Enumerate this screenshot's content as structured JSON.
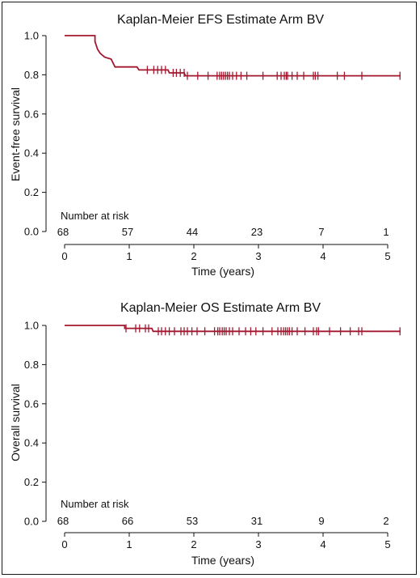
{
  "chart_data": [
    {
      "type": "line",
      "title": "Kaplan-Meier EFS Estimate Arm BV",
      "xlabel": "Time (years)",
      "ylabel": "Event-free survival",
      "xlim": [
        0,
        5.2
      ],
      "ylim": [
        0,
        1.0
      ],
      "x_ticks": [
        "0",
        "1",
        "2",
        "3",
        "4",
        "5"
      ],
      "y_ticks": [
        "0.0",
        "0.2",
        "0.4",
        "0.6",
        "0.8",
        "1.0"
      ],
      "line_color": "#a3182f",
      "series": [
        {
          "steps": [
            [
              0,
              1.0
            ],
            [
              0.47,
              1.0
            ],
            [
              0.47,
              0.97
            ],
            [
              0.49,
              0.95
            ],
            [
              0.51,
              0.93
            ],
            [
              0.55,
              0.91
            ],
            [
              0.62,
              0.89
            ],
            [
              0.72,
              0.88
            ],
            [
              0.78,
              0.84
            ],
            [
              1.12,
              0.84
            ],
            [
              1.15,
              0.825
            ],
            [
              1.6,
              0.825
            ],
            [
              1.62,
              0.81
            ],
            [
              1.85,
              0.81
            ],
            [
              1.87,
              0.795
            ],
            [
              5.2,
              0.795
            ]
          ],
          "censored": [
            1.28,
            1.38,
            1.44,
            1.5,
            1.56,
            1.68,
            1.73,
            1.79,
            1.85,
            1.9,
            2.06,
            2.22,
            2.36,
            2.4,
            2.43,
            2.46,
            2.49,
            2.52,
            2.55,
            2.6,
            2.66,
            2.73,
            2.82,
            3.07,
            3.29,
            3.35,
            3.4,
            3.43,
            3.45,
            3.52,
            3.6,
            3.7,
            3.85,
            3.88,
            3.92,
            4.22,
            4.33,
            4.6,
            5.19
          ]
        }
      ],
      "risk_table": {
        "label": "Number at risk",
        "times": [
          0,
          1,
          2,
          3,
          4,
          5
        ],
        "values": [
          "68",
          "57",
          "44",
          "23",
          "7",
          "1"
        ]
      }
    },
    {
      "type": "line",
      "title": "Kaplan-Meier OS Estimate Arm BV",
      "xlabel": "Time (years)",
      "ylabel": "Overall survival",
      "xlim": [
        0,
        5.2
      ],
      "ylim": [
        0,
        1.0
      ],
      "x_ticks": [
        "0",
        "1",
        "2",
        "3",
        "4",
        "5"
      ],
      "y_ticks": [
        "0.0",
        "0.2",
        "0.4",
        "0.6",
        "0.8",
        "1.0"
      ],
      "line_color": "#a3182f",
      "series": [
        {
          "steps": [
            [
              0,
              1.0
            ],
            [
              0.93,
              1.0
            ],
            [
              0.93,
              0.985
            ],
            [
              1.35,
              0.985
            ],
            [
              1.37,
              0.97
            ],
            [
              5.2,
              0.97
            ]
          ],
          "censored": [
            0.95,
            1.1,
            1.16,
            1.25,
            1.3,
            1.45,
            1.5,
            1.56,
            1.62,
            1.7,
            1.8,
            1.85,
            1.9,
            1.97,
            2.05,
            2.17,
            2.32,
            2.37,
            2.4,
            2.44,
            2.47,
            2.5,
            2.55,
            2.6,
            2.7,
            2.8,
            2.88,
            2.96,
            3.07,
            3.21,
            3.3,
            3.35,
            3.39,
            3.42,
            3.45,
            3.48,
            3.52,
            3.6,
            3.72,
            3.85,
            3.9,
            3.93,
            4.1,
            4.27,
            4.42,
            4.55,
            4.6,
            5.19
          ]
        }
      ],
      "risk_table": {
        "label": "Number at risk",
        "times": [
          0,
          1,
          2,
          3,
          4,
          5
        ],
        "values": [
          "68",
          "66",
          "53",
          "31",
          "9",
          "2"
        ]
      }
    }
  ]
}
